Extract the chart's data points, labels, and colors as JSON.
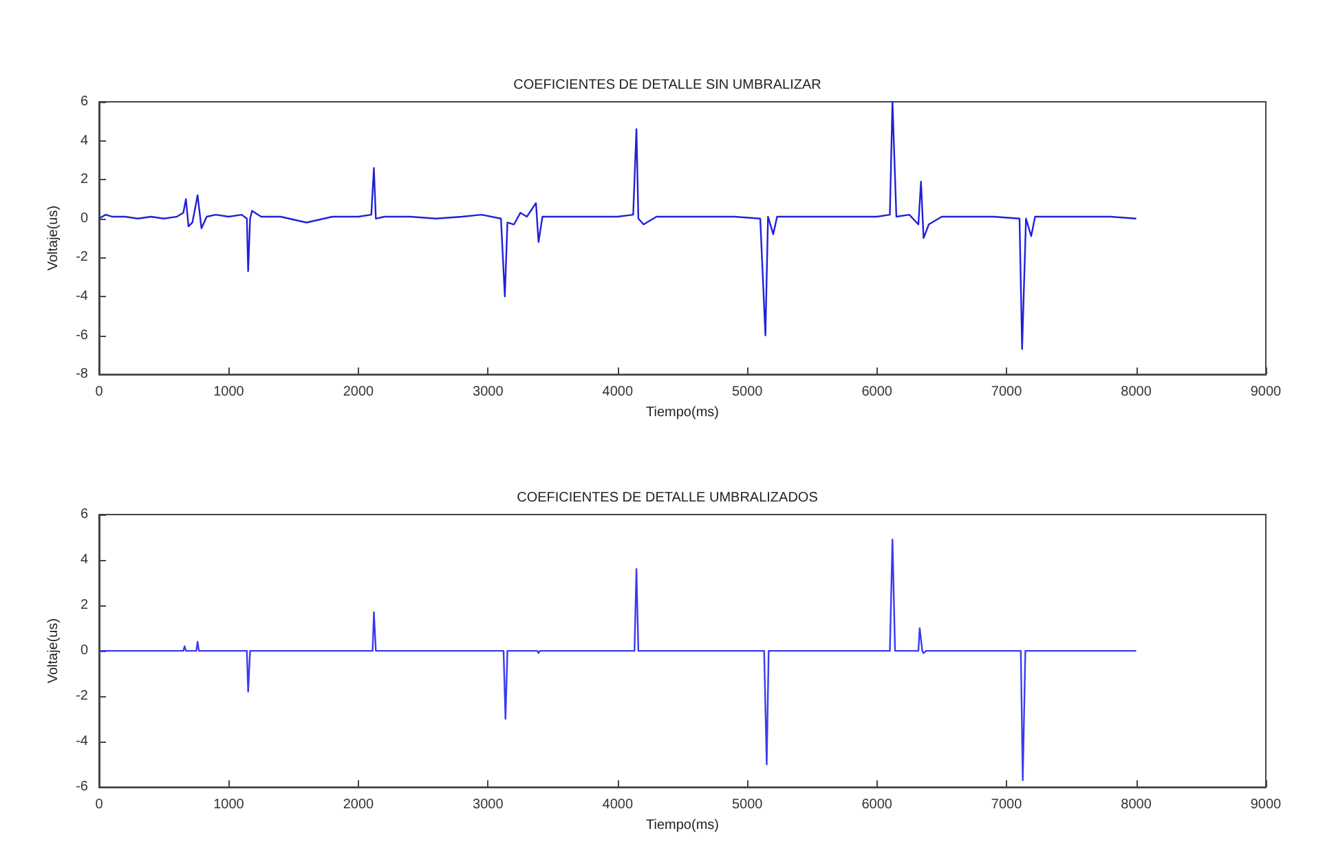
{
  "chart_data": [
    {
      "type": "line",
      "title": "COEFICIENTES DE DETALLE SIN UMBRALIZAR",
      "xlabel": "Tiempo(ms)",
      "ylabel": "Voltaje(us)",
      "x": [
        0,
        50,
        100,
        200,
        300,
        400,
        500,
        600,
        650,
        670,
        690,
        720,
        760,
        790,
        830,
        900,
        1000,
        1100,
        1140,
        1150,
        1165,
        1180,
        1250,
        1400,
        1600,
        1800,
        2000,
        2100,
        2120,
        2135,
        2200,
        2400,
        2600,
        2800,
        2950,
        3100,
        3130,
        3150,
        3200,
        3250,
        3300,
        3370,
        3390,
        3420,
        3600,
        3800,
        4000,
        4120,
        4145,
        4160,
        4200,
        4300,
        4500,
        4700,
        4900,
        5100,
        5140,
        5160,
        5200,
        5230,
        5400,
        5600,
        5800,
        6000,
        6100,
        6120,
        6150,
        6250,
        6320,
        6340,
        6360,
        6400,
        6500,
        6700,
        6900,
        7100,
        7120,
        7150,
        7190,
        7220,
        7400,
        7600,
        7800,
        8000
      ],
      "series": [
        {
          "color": "#2020d8",
          "values": [
            0,
            0.2,
            0.1,
            0.1,
            0,
            0.1,
            0,
            0.1,
            0.3,
            1.0,
            -0.4,
            -0.2,
            1.2,
            -0.5,
            0.1,
            0.2,
            0.1,
            0.2,
            0,
            -2.7,
            0,
            0.4,
            0.1,
            0.1,
            -0.2,
            0.1,
            0.1,
            0.2,
            2.6,
            0,
            0.1,
            0.1,
            0,
            0.1,
            0.2,
            0,
            -4.0,
            -0.2,
            -0.3,
            0.3,
            0.1,
            0.8,
            -1.2,
            0.1,
            0.1,
            0.1,
            0.1,
            0.2,
            4.6,
            0,
            -0.3,
            0.1,
            0.1,
            0.1,
            0.1,
            0,
            -6.0,
            0.1,
            -0.8,
            0.1,
            0.1,
            0.1,
            0.1,
            0.1,
            0.2,
            6.0,
            0.1,
            0.2,
            -0.3,
            1.9,
            -1.0,
            -0.3,
            0.1,
            0.1,
            0.1,
            0,
            -6.7,
            0,
            -0.9,
            0.1,
            0.1,
            0.1,
            0.1,
            0
          ]
        }
      ],
      "xlim": [
        0,
        9000
      ],
      "xticks": [
        0,
        1000,
        2000,
        3000,
        4000,
        5000,
        6000,
        7000,
        8000,
        9000
      ],
      "ylim": [
        -8,
        6
      ],
      "yticks": [
        -8,
        -6,
        -4,
        -2,
        0,
        2,
        4,
        6
      ],
      "grid": false,
      "marker": "none"
    },
    {
      "type": "line",
      "title": "COEFICIENTES DE DETALLE UMBRALIZADOS",
      "xlabel": "Tiempo(ms)",
      "ylabel": "Voltaje(us)",
      "x": [
        0,
        650,
        660,
        670,
        750,
        760,
        770,
        1140,
        1150,
        1165,
        2110,
        2120,
        2135,
        3120,
        3135,
        3150,
        3380,
        3390,
        3400,
        4130,
        4145,
        4160,
        5130,
        5150,
        5165,
        6100,
        6120,
        6140,
        6320,
        6330,
        6350,
        6360,
        6380,
        7110,
        7125,
        7145,
        8000
      ],
      "series": [
        {
          "color": "#3a3af0",
          "values": [
            0,
            0,
            0.2,
            0,
            0,
            0.4,
            0,
            0,
            -1.8,
            0,
            0,
            1.7,
            0,
            0,
            -3.0,
            0,
            0,
            -0.1,
            0,
            0,
            3.6,
            0,
            0,
            -5.0,
            0,
            0,
            4.9,
            0,
            0,
            1.0,
            0,
            -0.1,
            0,
            0,
            -5.7,
            0,
            0
          ]
        }
      ],
      "xlim": [
        0,
        9000
      ],
      "xticks": [
        0,
        1000,
        2000,
        3000,
        4000,
        5000,
        6000,
        7000,
        8000,
        9000
      ],
      "ylim": [
        -6,
        6
      ],
      "yticks": [
        -6,
        -4,
        -2,
        0,
        2,
        4,
        6
      ],
      "grid": false,
      "marker": "none"
    }
  ]
}
